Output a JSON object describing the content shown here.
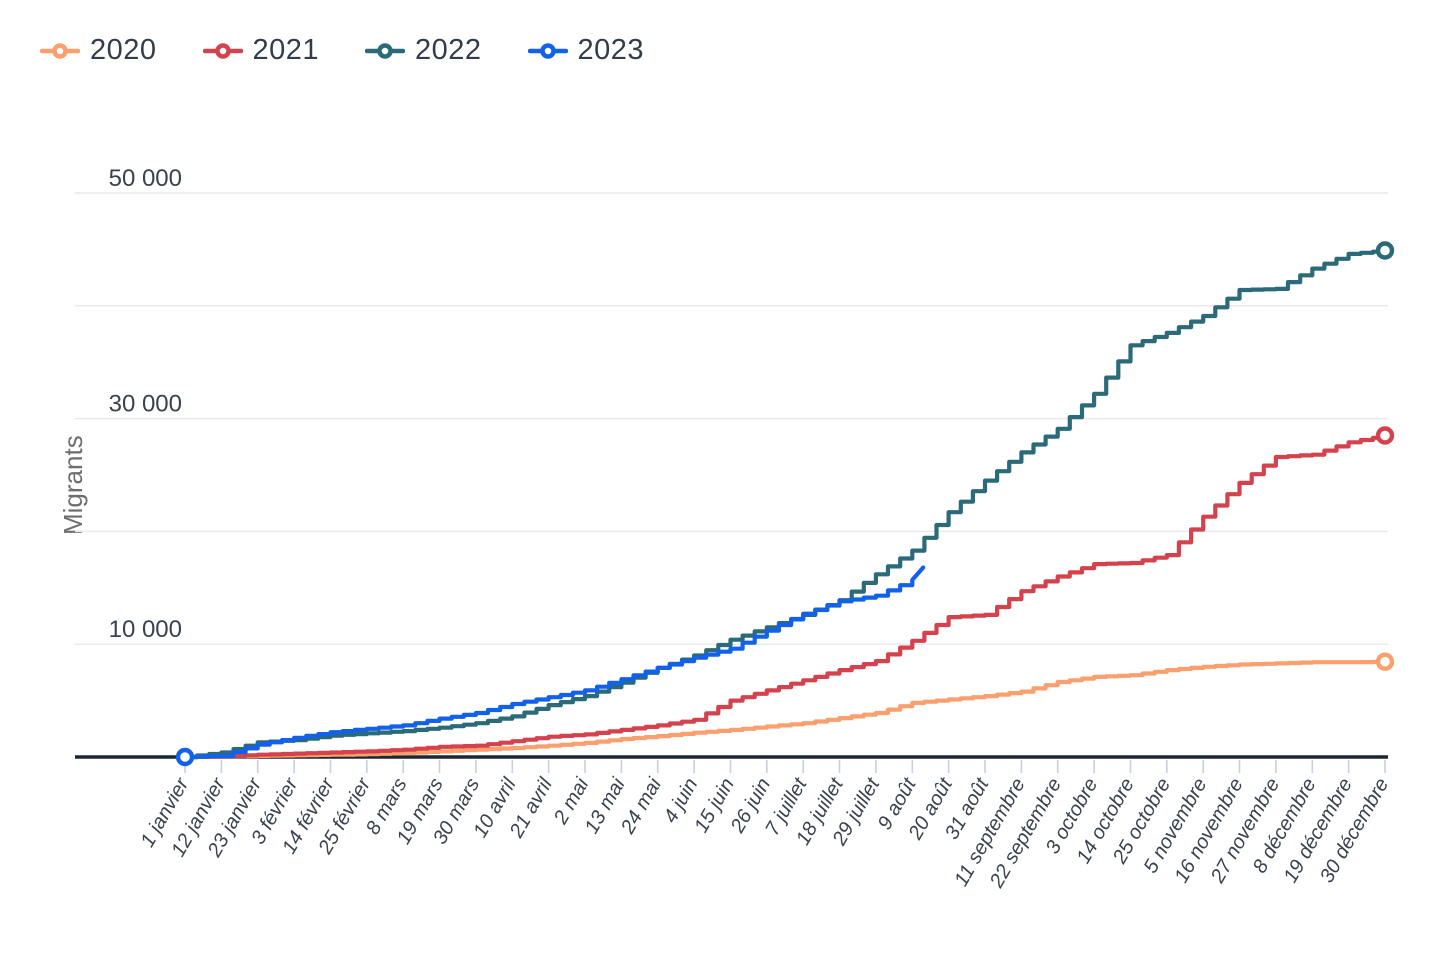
{
  "chart_data": {
    "type": "line",
    "title": "",
    "ylabel": "Migrants",
    "ylim": [
      0,
      53000
    ],
    "grid": true,
    "legend_position": "top-left",
    "x_tick_labels": [
      "1 janvier",
      "12 janvier",
      "23 janvier",
      "3 février",
      "14 février",
      "25 février",
      "8 mars",
      "19 mars",
      "30 mars",
      "10 avril",
      "21 avril",
      "2 mai",
      "13 mai",
      "24 mai",
      "4 juin",
      "15 juin",
      "26 juin",
      "7 juillet",
      "18 juillet",
      "29 juillet",
      "9 août",
      "20 août",
      "31 août",
      "11 septembre",
      "22 septembre",
      "3 octobre",
      "14 octobre",
      "25 octobre",
      "5 novembre",
      "16 novembre",
      "27 novembre",
      "8 décembre",
      "19 décembre",
      "30 décembre"
    ],
    "y_gridlines": [
      10000,
      20000,
      30000,
      40000,
      50000
    ],
    "y_tick_labels": [
      {
        "value": 10000,
        "label": "10 000"
      },
      {
        "value": 30000,
        "label": "30 000"
      },
      {
        "value": 50000,
        "label": "50 000"
      }
    ],
    "series": [
      {
        "name": "2020",
        "color": "#F9A06E",
        "start_marker": false,
        "end_marker": true,
        "values": [
          0,
          50,
          100,
          150,
          200,
          250,
          350,
          500,
          650,
          800,
          1000,
          1250,
          1600,
          1850,
          2150,
          2400,
          2700,
          3000,
          3450,
          3900,
          4800,
          5100,
          5400,
          5800,
          6650,
          7100,
          7250,
          7700,
          8000,
          8200,
          8300,
          8400,
          8400,
          8450
        ]
      },
      {
        "name": "2021",
        "color": "#D4424E",
        "start_marker": false,
        "end_marker": true,
        "values": [
          0,
          50,
          200,
          300,
          400,
          500,
          650,
          900,
          1000,
          1400,
          1800,
          2000,
          2400,
          2800,
          3300,
          5000,
          5900,
          6800,
          7700,
          8500,
          10300,
          12400,
          12600,
          14700,
          16000,
          17100,
          17200,
          17900,
          21300,
          24300,
          26600,
          26800,
          27900,
          28500
        ]
      },
      {
        "name": "2022",
        "color": "#2B6A78",
        "start_marker": false,
        "end_marker": true,
        "values": [
          0,
          400,
          1300,
          1500,
          1900,
          2100,
          2300,
          2600,
          3000,
          3600,
          4600,
          5400,
          6600,
          7900,
          9000,
          10400,
          11500,
          12600,
          13900,
          16200,
          18300,
          21700,
          24500,
          27000,
          29100,
          32200,
          36500,
          37600,
          39100,
          41400,
          41500,
          43300,
          44600,
          44900
        ]
      },
      {
        "name": "2023",
        "color": "#1261EB",
        "start_marker": true,
        "end_marker": false,
        "values": [
          0,
          100,
          1100,
          1700,
          2200,
          2500,
          2800,
          3400,
          3900,
          4700,
          5300,
          5900,
          6900,
          7900,
          8800,
          9600,
          11200,
          12700,
          13800,
          14300,
          15700
        ],
        "end_point": {
          "index": 20.3,
          "value": 16800
        }
      }
    ]
  }
}
